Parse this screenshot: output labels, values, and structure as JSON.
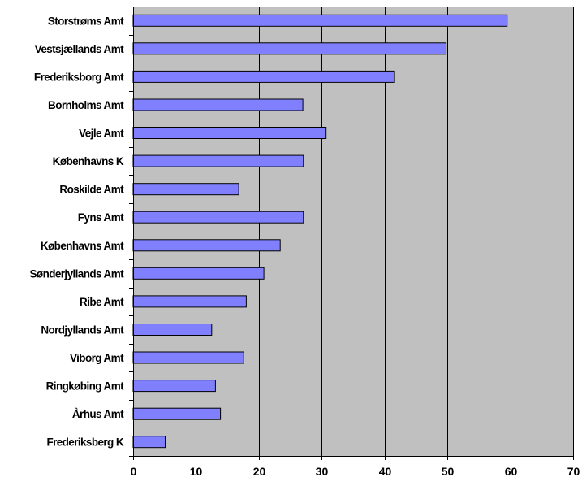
{
  "chart_data": {
    "type": "bar",
    "orientation": "horizontal",
    "categories": [
      "Storstrøms Amt",
      "Vestsjællands Amt",
      "Frederiksborg Amt",
      "Bornholms Amt",
      "Vejle Amt",
      "Københavns K",
      "Roskilde Amt",
      "Fyns Amt",
      "Københavns Amt",
      "Sønderjyllands Amt",
      "Ribe Amt",
      "Nordjyllands Amt",
      "Viborg Amt",
      "Ringkøbing Amt",
      "Århus Amt",
      "Frederiksberg K"
    ],
    "values": [
      59.5,
      49.8,
      41.6,
      27.0,
      30.7,
      27.1,
      16.8,
      27.1,
      23.4,
      20.8,
      18.0,
      12.5,
      17.6,
      13.1,
      13.9,
      5.1
    ],
    "xlim": [
      0,
      70
    ],
    "xticks": [
      0,
      10,
      20,
      30,
      40,
      50,
      60,
      70
    ],
    "grid": true,
    "colors": {
      "bar_fill": "#8080ff",
      "bar_stroke": "#000000",
      "plot_background": "#c0c0c0",
      "grid": "#000000"
    }
  }
}
